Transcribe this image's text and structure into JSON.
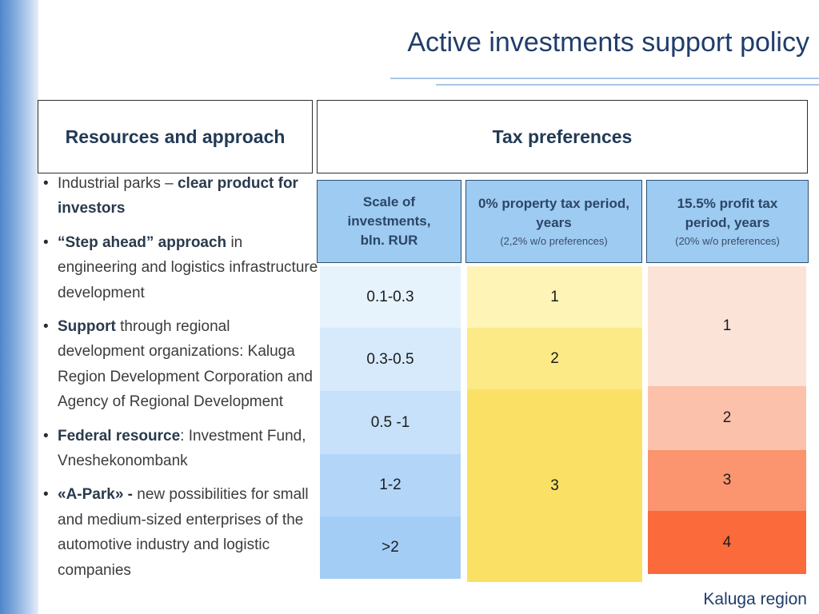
{
  "slide": {
    "title": "Active investments support policy",
    "footer": "Kaluga region"
  },
  "left_box": {
    "title": "Resources and approach"
  },
  "right_box": {
    "title": "Tax preferences"
  },
  "bullets": [
    {
      "pre": "Industrial parks – ",
      "bold": "clear product for investors",
      "post": ""
    },
    {
      "pre": "",
      "bold": "“Step ahead” approach",
      "post": " in engineering and logistics infrastructure development"
    },
    {
      "pre": "",
      "bold": "Support",
      "post": " through regional development organizations: Kaluga Region Development Corporation and Agency of Regional Development"
    },
    {
      "pre": "",
      "bold": "Federal resource",
      "post": ": Investment Fund, Vneshekonombank"
    },
    {
      "pre": "",
      "bold": "«A-Park» -",
      "post": " new possibilities for small and medium-sized enterprises of the automotive industry and logistic companies"
    }
  ],
  "table": {
    "headers": [
      {
        "label": "Scale of investments, bln. RUR",
        "note": ""
      },
      {
        "label": "0% property tax period, years",
        "note": "(2,2% w/o preferences)"
      },
      {
        "label": "15.5% profit tax period, years",
        "note": "(20% w/o preferences)"
      }
    ],
    "scale": [
      "0.1-0.3",
      "0.3-0.5",
      "0.5 -1",
      "1-2",
      ">2"
    ],
    "property_tax": [
      {
        "value": "1",
        "color": "#fdf4b6"
      },
      {
        "value": "2",
        "color": "#fbea86"
      },
      {
        "value": "3",
        "color": "#fae165"
      }
    ],
    "profit_tax": [
      {
        "value": "1",
        "color": "#fce3d8"
      },
      {
        "value": "2",
        "color": "#fcc1aa"
      },
      {
        "value": "3",
        "color": "#fb956f"
      },
      {
        "value": "4",
        "color": "#fa6a3a"
      }
    ],
    "scale_colors": [
      "#e6f2fc",
      "#d6eafb",
      "#c6e1f9",
      "#b3d6f8",
      "#a4cdf6"
    ]
  }
}
